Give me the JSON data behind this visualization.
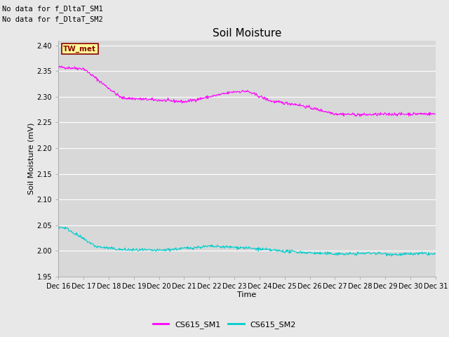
{
  "title": "Soil Moisture",
  "ylabel": "Soil Moisture (mV)",
  "xlabel": "Time",
  "no_data_text": [
    "No data for f_DltaT_SM1",
    "No data for f_DltaT_SM2"
  ],
  "tw_met_label": "TW_met",
  "legend_labels": [
    "CS615_SM1",
    "CS615_SM2"
  ],
  "ylim": [
    1.95,
    2.41
  ],
  "yticks": [
    1.95,
    2.0,
    2.05,
    2.1,
    2.15,
    2.2,
    2.25,
    2.3,
    2.35,
    2.4
  ],
  "x_tick_labels": [
    "Dec 16",
    "Dec 17",
    "Dec 18",
    "Dec 19",
    "Dec 20",
    "Dec 21",
    "Dec 22",
    "Dec 23",
    "Dec 24",
    "Dec 25",
    "Dec 26",
    "Dec 27",
    "Dec 28",
    "Dec 29",
    "Dec 30",
    "Dec 31"
  ],
  "bg_color": "#e8e8e8",
  "plot_bg_color": "#d8d8d8",
  "line1_color": "#ff00ff",
  "line2_color": "#00cccc",
  "line_width": 0.8,
  "grid_color": "#f0f0f0",
  "tick_fontsize": 7,
  "label_fontsize": 8,
  "title_fontsize": 11
}
